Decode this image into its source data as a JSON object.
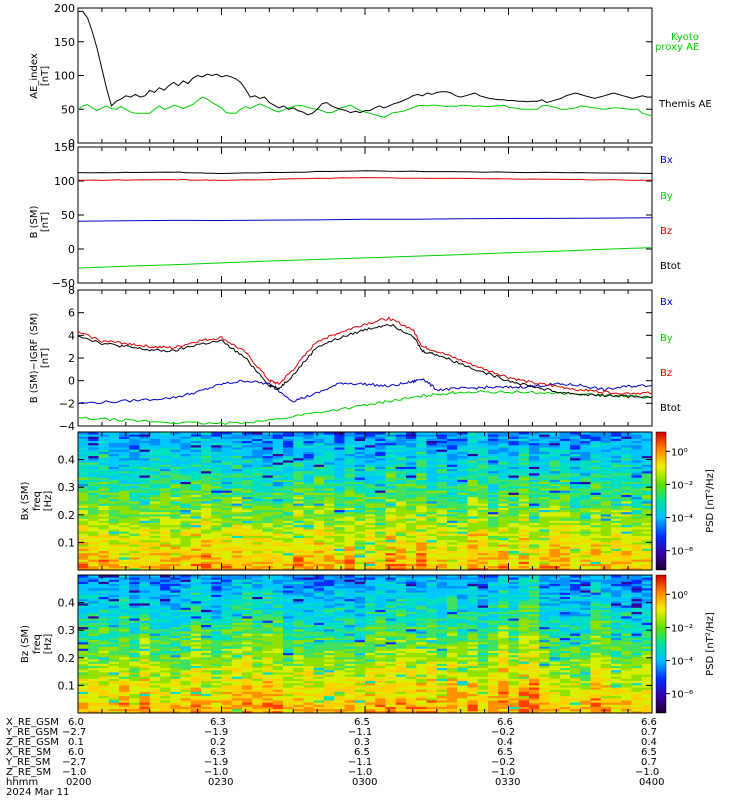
{
  "chart_data": [
    {
      "type": "line",
      "ylabel": "AE_index",
      "yunits": "[nT]",
      "ylim": [
        0,
        200
      ],
      "yticks": [
        "0",
        "50",
        "100",
        "150",
        "200"
      ],
      "series": [
        {
          "name": "Kyoto proxy AE",
          "color": "#00d000",
          "x": [
            0,
            1,
            2,
            3,
            4,
            5,
            6,
            7,
            8,
            9,
            10,
            11,
            12,
            13,
            14,
            15,
            16,
            17,
            18,
            19,
            20,
            21,
            22,
            23,
            24,
            25,
            26,
            27,
            28,
            29,
            30,
            31,
            32,
            33,
            34,
            35,
            36,
            37,
            38,
            39,
            40,
            41,
            42,
            43,
            44,
            45,
            46,
            47,
            48,
            49,
            50,
            51,
            52,
            53,
            54,
            55,
            56,
            57,
            58,
            59,
            60,
            61,
            62,
            63,
            64,
            65,
            66,
            67,
            68,
            69,
            70,
            71,
            72,
            73,
            74,
            75,
            76,
            77,
            78,
            79,
            80,
            81,
            82,
            83,
            84,
            85,
            86,
            87,
            88,
            89,
            90,
            91,
            92,
            93,
            94,
            95,
            96,
            97,
            98,
            99,
            100,
            101,
            102,
            103,
            104,
            105,
            106,
            107,
            108,
            109,
            110,
            111,
            112,
            113,
            114,
            115,
            116,
            117,
            118,
            119,
            120
          ],
          "y": [
            50,
            55,
            57,
            52,
            48,
            52,
            55,
            51,
            50,
            54,
            50,
            46,
            44,
            44,
            44,
            44,
            50,
            55,
            50,
            52,
            56,
            54,
            51,
            54,
            57,
            63,
            68,
            65,
            60,
            56,
            52,
            45,
            44,
            44,
            50,
            54,
            51,
            55,
            58,
            55,
            52,
            48,
            46,
            49,
            52,
            54,
            56,
            55,
            53,
            51,
            50,
            48,
            45,
            45,
            48,
            52,
            54,
            56,
            52,
            48,
            46,
            44,
            42,
            40,
            38,
            42,
            45,
            46,
            47,
            50,
            52,
            55,
            56,
            55,
            56,
            56,
            55,
            54,
            55,
            54,
            56,
            56,
            55,
            54,
            55,
            54,
            54,
            55,
            55,
            56,
            53,
            52,
            51,
            50,
            50,
            50,
            50,
            55,
            56,
            54,
            52,
            50,
            50,
            51,
            52,
            55,
            54,
            53,
            52,
            51,
            50,
            51,
            52,
            52,
            51,
            50,
            50,
            50,
            44,
            42,
            40
          ]
        },
        {
          "name": "Themis AE",
          "color": "#000000",
          "x": [
            0,
            1,
            2,
            3,
            4,
            5,
            6,
            7,
            8,
            9,
            10,
            11,
            12,
            13,
            14,
            15,
            16,
            17,
            18,
            19,
            20,
            21,
            22,
            23,
            24,
            25,
            26,
            27,
            28,
            29,
            30,
            31,
            32,
            33,
            34,
            35,
            36,
            37,
            38,
            39,
            40,
            41,
            42,
            43,
            44,
            45,
            46,
            47,
            48,
            49,
            50,
            51,
            52,
            53,
            54,
            55,
            56,
            57,
            58,
            59,
            60,
            61,
            62,
            63,
            64,
            65,
            66,
            67,
            68,
            69,
            70,
            71,
            72,
            73,
            74,
            75,
            76,
            77,
            78,
            79,
            80,
            81,
            82,
            83,
            84,
            85,
            86,
            87,
            88,
            89,
            90,
            91,
            92,
            93,
            94,
            95,
            96,
            97,
            98,
            99,
            100,
            101,
            102,
            103,
            104,
            105,
            106,
            107,
            108,
            109,
            110,
            111,
            112,
            113,
            114,
            115,
            116,
            117,
            118,
            119,
            120
          ],
          "y": [
            195,
            195,
            185,
            165,
            140,
            110,
            80,
            55,
            62,
            65,
            70,
            68,
            72,
            68,
            70,
            78,
            75,
            82,
            78,
            85,
            90,
            85,
            92,
            88,
            96,
            100,
            98,
            102,
            100,
            102,
            98,
            100,
            98,
            95,
            90,
            80,
            68,
            70,
            66,
            68,
            60,
            56,
            52,
            55,
            50,
            52,
            48,
            46,
            42,
            44,
            50,
            58,
            60,
            55,
            52,
            50,
            48,
            45,
            47,
            45,
            48,
            48,
            52,
            55,
            52,
            55,
            58,
            60,
            63,
            66,
            70,
            72,
            70,
            74,
            72,
            75,
            76,
            76,
            74,
            70,
            68,
            70,
            72,
            74,
            70,
            68,
            66,
            65,
            64,
            64,
            63,
            63,
            62,
            62,
            61,
            62,
            62,
            64,
            60,
            62,
            64,
            66,
            70,
            72,
            74,
            72,
            70,
            68,
            66,
            68,
            70,
            72,
            74,
            72,
            70,
            68,
            66,
            68,
            70,
            68,
            68
          ]
        }
      ]
    },
    {
      "type": "line",
      "ylabel": "B (SM)",
      "yunits": "[nT]",
      "ylim": [
        -50,
        150
      ],
      "yticks": [
        "−50",
        "0",
        "50",
        "100",
        "150"
      ],
      "series": [
        {
          "name": "Bx",
          "color": "#0000c8",
          "x": [
            0,
            120
          ],
          "y": [
            41,
            46
          ]
        },
        {
          "name": "By",
          "color": "#00d000",
          "x": [
            0,
            120
          ],
          "y": [
            -28,
            2
          ]
        },
        {
          "name": "Bz",
          "color": "#e00000",
          "x": [
            0,
            20,
            30,
            60,
            90,
            120
          ],
          "y": [
            101,
            102,
            101,
            105,
            103,
            101
          ]
        },
        {
          "name": "Btot",
          "color": "#000000",
          "x": [
            0,
            20,
            30,
            60,
            90,
            120
          ],
          "y": [
            112,
            113,
            111,
            115,
            113,
            111
          ]
        }
      ]
    },
    {
      "type": "line",
      "ylabel": "B (SM)−IGRF (SM)",
      "yunits": "[nT]",
      "ylim": [
        -4,
        8
      ],
      "yticks": [
        "−4",
        "−2",
        "0",
        "2",
        "4",
        "6",
        "8"
      ],
      "series": [
        {
          "name": "Bx",
          "color": "#0000c8",
          "x": [
            0,
            10,
            20,
            25,
            30,
            35,
            40,
            45,
            50,
            55,
            60,
            65,
            70,
            72,
            75,
            80,
            85,
            90,
            95,
            100,
            105,
            110,
            115,
            120
          ],
          "y": [
            -2.0,
            -1.8,
            -1.5,
            -1.0,
            -0.3,
            0,
            -0.3,
            -1.8,
            -1.1,
            -0.2,
            -0.3,
            -0.5,
            -0.1,
            0.2,
            -0.8,
            -0.7,
            -0.6,
            -0.6,
            -0.5,
            -0.3,
            -0.4,
            -0.8,
            -0.5,
            -0.4
          ]
        },
        {
          "name": "By",
          "color": "#00d000",
          "x": [
            0,
            10,
            20,
            30,
            40,
            50,
            60,
            65,
            70,
            75,
            80,
            90,
            100,
            110,
            120
          ],
          "y": [
            -3.3,
            -3.5,
            -3.7,
            -3.8,
            -3.5,
            -2.8,
            -2.2,
            -1.8,
            -1.5,
            -1.2,
            -1.0,
            -1.0,
            -1.1,
            -1.3,
            -1.5
          ]
        },
        {
          "name": "Bz",
          "color": "#e00000",
          "x": [
            0,
            5,
            10,
            15,
            20,
            25,
            30,
            35,
            40,
            42,
            45,
            50,
            55,
            60,
            65,
            70,
            72,
            75,
            80,
            85,
            90,
            95,
            100,
            105,
            110,
            115,
            120
          ],
          "y": [
            4.3,
            3.5,
            3.3,
            3.0,
            2.9,
            3.5,
            3.8,
            2.5,
            0,
            -0.3,
            1.0,
            3.5,
            4.3,
            5.0,
            5.5,
            4.5,
            3.0,
            2.6,
            1.8,
            1.0,
            0.3,
            -0.2,
            -0.5,
            -0.8,
            -1.0,
            -1.1,
            -1.1
          ]
        },
        {
          "name": "Btot",
          "color": "#000000",
          "x": [
            0,
            5,
            10,
            15,
            20,
            25,
            30,
            35,
            40,
            42,
            45,
            50,
            55,
            60,
            65,
            70,
            72,
            75,
            80,
            85,
            90,
            95,
            100,
            105,
            110,
            115,
            120
          ],
          "y": [
            4.0,
            3.3,
            3.0,
            2.7,
            2.6,
            3.2,
            3.5,
            2.0,
            -0.4,
            -0.7,
            0.5,
            3.0,
            3.8,
            4.5,
            5.0,
            4.0,
            2.6,
            2.3,
            1.5,
            0.7,
            0,
            -0.5,
            -1.0,
            -1.2,
            -1.3,
            -1.4,
            -1.4
          ]
        }
      ]
    },
    {
      "type": "heatmap",
      "ylabel": "Bx (SM)",
      "ylabel2": "freq",
      "yunits": "[Hz]",
      "ylim": [
        0,
        0.5
      ],
      "yticks": [
        "0.1",
        "0.2",
        "0.3",
        "0.4"
      ],
      "colorbar_label": "PSD [nT²/Hz]",
      "colorbar_ticks": [
        "10⁰",
        "10⁻²",
        "10⁻⁴",
        "10⁻⁶"
      ]
    },
    {
      "type": "heatmap",
      "ylabel": "Bz (SM)",
      "ylabel2": "freq",
      "yunits": "[Hz]",
      "ylim": [
        0,
        0.5
      ],
      "yticks": [
        "0.1",
        "0.2",
        "0.3",
        "0.4"
      ],
      "colorbar_label": "PSD [nT²/Hz]",
      "colorbar_ticks": [
        "10⁰",
        "10⁻²",
        "10⁻⁴",
        "10⁻⁶"
      ]
    }
  ],
  "legends": {
    "panel1": [
      "Kyoto",
      "proxy AE",
      "Themis AE"
    ],
    "panel2": [
      "Bx",
      "By",
      "Bz",
      "Btot"
    ],
    "panel3": [
      "Bx",
      "By",
      "Bz",
      "Btot"
    ]
  },
  "ephemeris": {
    "rows": [
      {
        "label": "X_RE_GSM",
        "values": [
          "6.0",
          "6.3",
          "6.5",
          "6.6",
          "6.6"
        ]
      },
      {
        "label": "Y_RE_GSM",
        "values": [
          "−2.7",
          "−1.9",
          "−1.1",
          "−0.2",
          "0.7"
        ]
      },
      {
        "label": "Z_RE_GSM",
        "values": [
          "0.1",
          "0.2",
          "0.3",
          "0.4",
          "0.4"
        ]
      },
      {
        "label": "X_RE_SM",
        "values": [
          "6.0",
          "6.3",
          "6.5",
          "6.5",
          "6.5"
        ]
      },
      {
        "label": "Y_RE_SM",
        "values": [
          "−2.7",
          "−1.9",
          "−1.1",
          "−0.2",
          "0.7"
        ]
      },
      {
        "label": "Z_RE_SM",
        "values": [
          "−1.0",
          "−1.0",
          "−1.0",
          "−1.0",
          "−1.0"
        ]
      },
      {
        "label": "hhmm",
        "values": [
          "0200",
          "0230",
          "0300",
          "0330",
          "0400"
        ]
      }
    ],
    "date": "2024 Mar 11"
  }
}
